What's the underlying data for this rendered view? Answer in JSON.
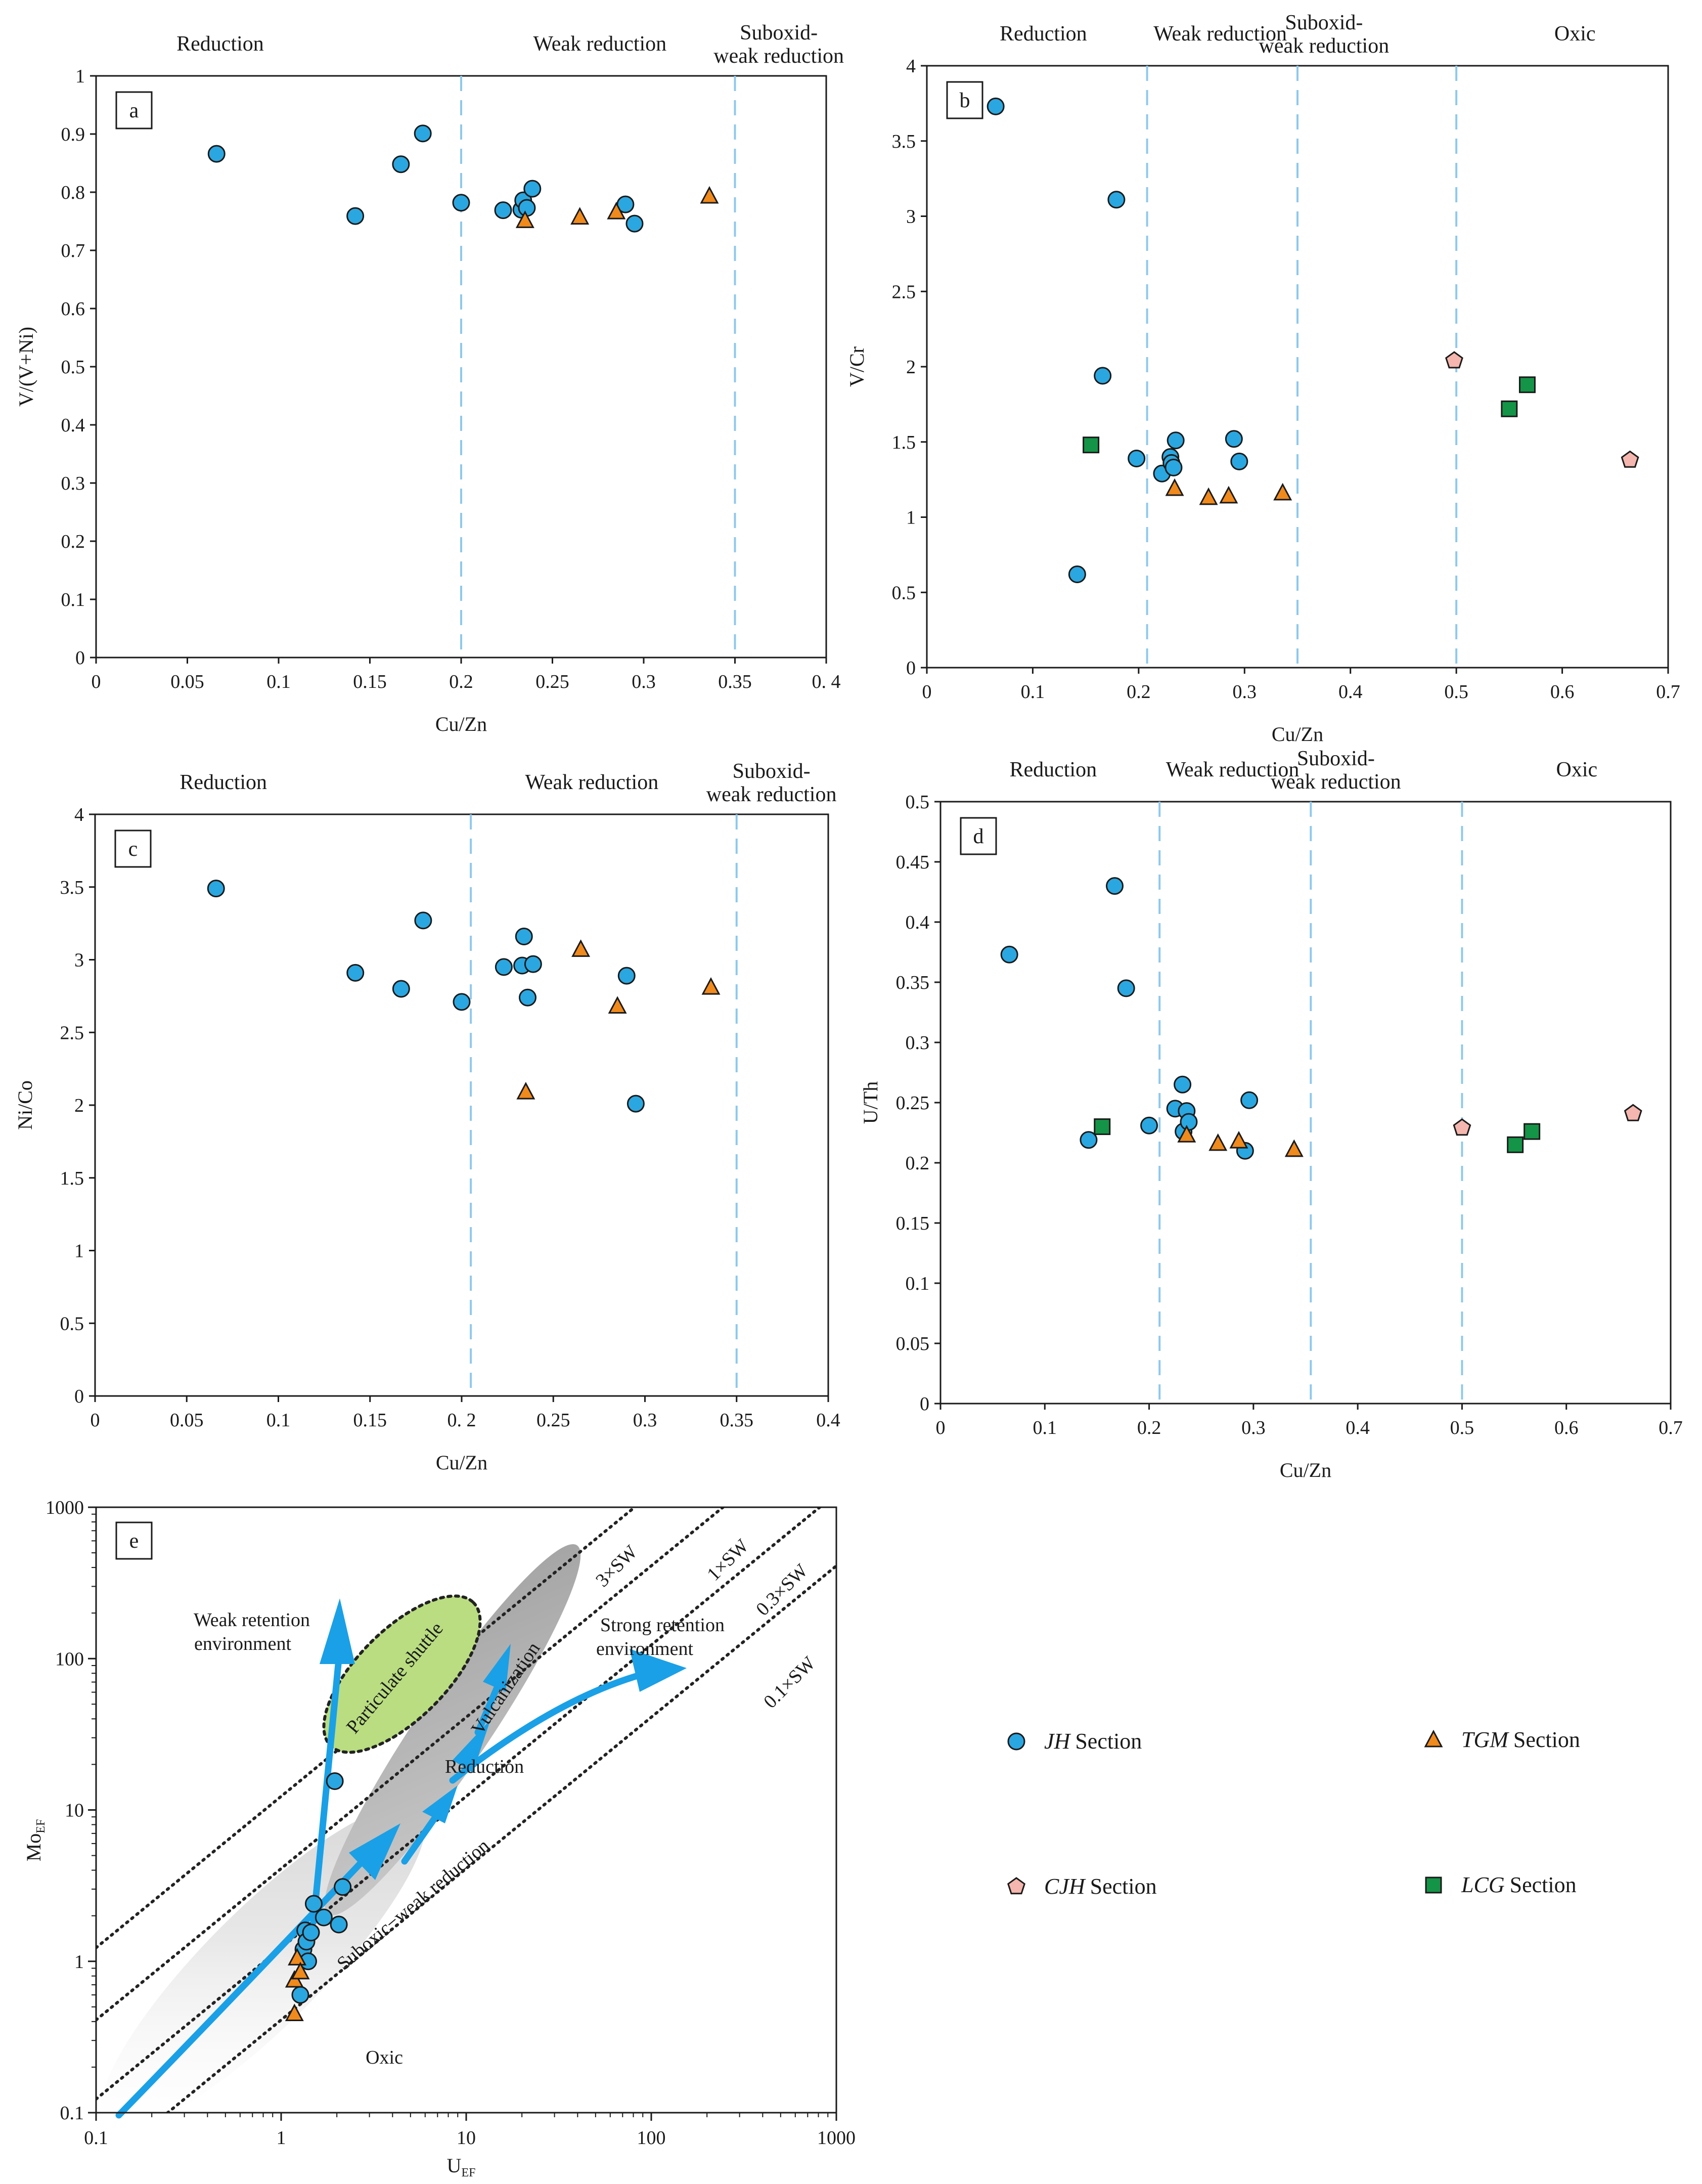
{
  "figure_title": "",
  "colors": {
    "jh": "#2aa7e0",
    "tgm": "#f08a1c",
    "cjh": "#f4b6ae",
    "lcg": "#149447",
    "divider": "#8ec9ec",
    "arrow": "#1aa0e6",
    "shuttle_fill": "#b9dd80"
  },
  "legend": {
    "items": [
      {
        "key": "jh",
        "name": "JH",
        "suffix": "Section"
      },
      {
        "key": "tgm",
        "name": "TGM",
        "suffix": "Section"
      },
      {
        "key": "cjh",
        "name": "CJH",
        "suffix": "Section"
      },
      {
        "key": "lcg",
        "name": "LCG",
        "suffix": "Section"
      }
    ]
  },
  "chart_data": [
    {
      "id": "a",
      "type": "scatter",
      "panel_label": "a",
      "xlabel": "Cu/Zn",
      "ylabel": "V/(V+Ni)",
      "xlim": [
        0,
        0.4
      ],
      "ylim": [
        0,
        1
      ],
      "xticks": [
        0,
        0.05,
        0.1,
        0.15,
        0.2,
        0.25,
        0.3,
        0.35,
        0.4
      ],
      "xtick_labels": [
        "0",
        "0.05",
        "0.1",
        "0.15",
        "0.2",
        "0.25",
        "0.3",
        "0.35",
        "0.  4"
      ],
      "yticks": [
        0,
        0.1,
        0.2,
        0.3,
        0.4,
        0.5,
        0.6,
        0.7,
        0.8,
        0.9,
        1
      ],
      "ytick_labels": [
        "0",
        "0.1",
        "0.2",
        "0.3",
        "0.4",
        "0.5",
        "0.6",
        "0.7",
        "0.8",
        "0.9",
        "1"
      ],
      "dividers": [
        0.2,
        0.35
      ],
      "zones": [
        {
          "label": "Reduction",
          "x": 0.068
        },
        {
          "label": "Weak reduction",
          "x": 0.276
        },
        {
          "label": "Suboxid-",
          "x": 0.374
        },
        {
          "label": "weak reduction",
          "x": 0.374
        }
      ],
      "series": [
        {
          "name": "JH Section",
          "marker": "circle",
          "points": [
            [
              0.066,
              0.866
            ],
            [
              0.142,
              0.759
            ],
            [
              0.167,
              0.848
            ],
            [
              0.179,
              0.901
            ],
            [
              0.2,
              0.782
            ],
            [
              0.223,
              0.769
            ],
            [
              0.233,
              0.77
            ],
            [
              0.234,
              0.786
            ],
            [
              0.236,
              0.773
            ],
            [
              0.239,
              0.806
            ],
            [
              0.29,
              0.779
            ],
            [
              0.295,
              0.746
            ]
          ]
        },
        {
          "name": "TGM Section",
          "marker": "triangle",
          "points": [
            [
              0.235,
              0.751
            ],
            [
              0.265,
              0.757
            ],
            [
              0.285,
              0.766
            ],
            [
              0.336,
              0.793
            ]
          ]
        }
      ]
    },
    {
      "id": "b",
      "type": "scatter",
      "panel_label": "b",
      "xlabel": "Cu/Zn",
      "ylabel": "V/Cr",
      "xlim": [
        0,
        0.7
      ],
      "ylim": [
        0,
        4
      ],
      "xticks": [
        0,
        0.1,
        0.2,
        0.3,
        0.4,
        0.5,
        0.6,
        0.7
      ],
      "xtick_labels": [
        "0",
        "0.1",
        "0.2",
        "0.3",
        "0.4",
        "0.5",
        "0.6",
        "0.7"
      ],
      "yticks": [
        0,
        0.5,
        1,
        1.5,
        2,
        2.5,
        3,
        3.5,
        4
      ],
      "ytick_labels": [
        "0",
        "0.5",
        "1",
        "1.5",
        "2",
        "2.5",
        "3",
        "3.5",
        "4"
      ],
      "dividers": [
        0.208,
        0.35,
        0.5
      ],
      "zones": [
        {
          "label": "Reduction",
          "x": 0.11
        },
        {
          "label": "Weak reduction",
          "x": 0.277
        },
        {
          "label": "Suboxid-",
          "x": 0.375
        },
        {
          "label": "weak reduction",
          "x": 0.375
        },
        {
          "label": "Oxic",
          "x": 0.612
        }
      ],
      "series": [
        {
          "name": "JH Section",
          "marker": "circle",
          "points": [
            [
              0.065,
              3.73
            ],
            [
              0.142,
              0.62
            ],
            [
              0.166,
              1.94
            ],
            [
              0.179,
              3.11
            ],
            [
              0.198,
              1.39
            ],
            [
              0.222,
              1.29
            ],
            [
              0.23,
              1.4
            ],
            [
              0.231,
              1.36
            ],
            [
              0.233,
              1.33
            ],
            [
              0.235,
              1.51
            ],
            [
              0.29,
              1.52
            ],
            [
              0.295,
              1.37
            ]
          ]
        },
        {
          "name": "TGM Section",
          "marker": "triangle",
          "points": [
            [
              0.234,
              1.19
            ],
            [
              0.266,
              1.13
            ],
            [
              0.285,
              1.14
            ],
            [
              0.336,
              1.16
            ]
          ]
        },
        {
          "name": "CJH Section",
          "marker": "pentagon",
          "points": [
            [
              0.498,
              2.04
            ],
            [
              0.664,
              1.38
            ]
          ]
        },
        {
          "name": "LCG Section",
          "marker": "square",
          "points": [
            [
              0.155,
              1.48
            ],
            [
              0.55,
              1.72
            ],
            [
              0.567,
              1.88
            ]
          ]
        }
      ]
    },
    {
      "id": "c",
      "type": "scatter",
      "panel_label": "c",
      "xlabel": "Cu/Zn",
      "ylabel": "Ni/Co",
      "xlim": [
        0,
        0.4
      ],
      "ylim": [
        0,
        4
      ],
      "xticks": [
        0,
        0.05,
        0.1,
        0.15,
        0.2,
        0.25,
        0.3,
        0.35,
        0.4
      ],
      "xtick_labels": [
        "0",
        "0.05",
        "0.1",
        "0.15",
        "0. 2",
        "0.25",
        "0.3",
        "0.35",
        "0.4"
      ],
      "yticks": [
        0,
        0.5,
        1,
        1.5,
        2,
        2.5,
        3,
        3.5,
        4
      ],
      "ytick_labels": [
        "0",
        "0.5",
        "1",
        "1.5",
        "2",
        "2.5",
        "3",
        "3.5",
        "4"
      ],
      "dividers": [
        0.205,
        0.35
      ],
      "zones": [
        {
          "label": "Reduction",
          "x": 0.07
        },
        {
          "label": "Weak reduction",
          "x": 0.271
        },
        {
          "label": "Suboxid-",
          "x": 0.369
        },
        {
          "label": "weak reduction",
          "x": 0.369
        }
      ],
      "series": [
        {
          "name": "JH Section",
          "marker": "circle",
          "points": [
            [
              0.066,
              3.49
            ],
            [
              0.142,
              2.91
            ],
            [
              0.167,
              2.8
            ],
            [
              0.179,
              3.27
            ],
            [
              0.2,
              2.71
            ],
            [
              0.223,
              2.95
            ],
            [
              0.233,
              2.96
            ],
            [
              0.234,
              3.16
            ],
            [
              0.236,
              2.74
            ],
            [
              0.239,
              2.97
            ],
            [
              0.29,
              2.89
            ],
            [
              0.295,
              2.01
            ]
          ]
        },
        {
          "name": "TGM Section",
          "marker": "triangle",
          "points": [
            [
              0.235,
              2.09
            ],
            [
              0.265,
              3.07
            ],
            [
              0.285,
              2.68
            ],
            [
              0.336,
              2.81
            ]
          ]
        }
      ]
    },
    {
      "id": "d",
      "type": "scatter",
      "panel_label": "d",
      "xlabel": "Cu/Zn",
      "ylabel": "U/Th",
      "xlim": [
        0,
        0.7
      ],
      "ylim": [
        0,
        0.5
      ],
      "xticks": [
        0,
        0.1,
        0.2,
        0.3,
        0.4,
        0.5,
        0.6,
        0.7
      ],
      "xtick_labels": [
        "0",
        "0.1",
        "0.2",
        "0.3",
        "0.4",
        "0.5",
        "0.6",
        "0.7"
      ],
      "yticks": [
        0,
        0.05,
        0.1,
        0.15,
        0.2,
        0.25,
        0.3,
        0.35,
        0.4,
        0.45,
        0.5
      ],
      "ytick_labels": [
        "0",
        "0.05",
        "0.1",
        "0.15",
        "0.2",
        "0.25",
        "0.3",
        "0.35",
        "0.4",
        "0.45",
        "0.5"
      ],
      "dividers": [
        0.21,
        0.355,
        0.5
      ],
      "zones": [
        {
          "label": "Reduction",
          "x": 0.108
        },
        {
          "label": "Weak reduction",
          "x": 0.28
        },
        {
          "label": "Suboxid-",
          "x": 0.379
        },
        {
          "label": "weak reduction",
          "x": 0.379
        },
        {
          "label": "Oxic",
          "x": 0.61
        }
      ],
      "series": [
        {
          "name": "JH Section",
          "marker": "circle",
          "points": [
            [
              0.066,
              0.373
            ],
            [
              0.142,
              0.219
            ],
            [
              0.167,
              0.43
            ],
            [
              0.178,
              0.345
            ],
            [
              0.2,
              0.231
            ],
            [
              0.225,
              0.245
            ],
            [
              0.232,
              0.265
            ],
            [
              0.233,
              0.226
            ],
            [
              0.236,
              0.243
            ],
            [
              0.238,
              0.234
            ],
            [
              0.292,
              0.21
            ],
            [
              0.296,
              0.252
            ]
          ]
        },
        {
          "name": "TGM Section",
          "marker": "triangle",
          "points": [
            [
              0.236,
              0.223
            ],
            [
              0.266,
              0.216
            ],
            [
              0.286,
              0.218
            ],
            [
              0.339,
              0.211
            ]
          ]
        },
        {
          "name": "CJH Section",
          "marker": "pentagon",
          "points": [
            [
              0.5,
              0.229
            ],
            [
              0.664,
              0.241
            ]
          ]
        },
        {
          "name": "LCG Section",
          "marker": "square",
          "points": [
            [
              0.155,
              0.23
            ],
            [
              0.551,
              0.215
            ],
            [
              0.567,
              0.226
            ]
          ]
        }
      ]
    },
    {
      "id": "e",
      "type": "scatter",
      "panel_label": "e",
      "xlabel": "U",
      "xlabel_sub": "EF",
      "ylabel": "Mo",
      "ylabel_sub": "EF",
      "xscale": "log",
      "yscale": "log",
      "xlim": [
        0.1,
        1000
      ],
      "ylim": [
        0.1,
        1000
      ],
      "xticks": [
        0.1,
        1,
        10,
        100,
        1000
      ],
      "xtick_labels": [
        "0.1",
        "1",
        "10",
        "100",
        "1000"
      ],
      "yticks": [
        0.1,
        1,
        10,
        100,
        1000
      ],
      "ytick_labels": [
        "0.1",
        "1",
        "10",
        "100",
        "1000"
      ],
      "sw_lines": [
        {
          "label": "3×SW",
          "factor": 12.3
        },
        {
          "label": "1×SW",
          "factor": 4.1
        },
        {
          "label": "0.3×SW",
          "factor": 1.23
        },
        {
          "label": "0.1×SW",
          "factor": 0.41
        }
      ],
      "annotations": {
        "weak_retention_1": "Weak retention",
        "weak_retention_2": "environment",
        "strong_retention_1": "Strong retention",
        "strong_retention_2": "environment",
        "particulate_shuttle": "Particulate shuttle",
        "vulcanization": "Vulcanization",
        "reduction": "Reduction",
        "suboxic": "Suboxic−weak reduction",
        "oxic": "Oxic"
      },
      "series": [
        {
          "name": "JH Section",
          "marker": "circle",
          "points": [
            [
              1.27,
              0.6
            ],
            [
              1.32,
              1.2
            ],
            [
              1.35,
              1.6
            ],
            [
              1.37,
              1.35
            ],
            [
              1.4,
              1.0
            ],
            [
              1.5,
              2.4
            ],
            [
              1.7,
              1.95
            ],
            [
              1.95,
              15.5
            ],
            [
              2.05,
              1.75
            ],
            [
              2.15,
              3.1
            ],
            [
              1.45,
              1.55
            ]
          ]
        },
        {
          "name": "TGM Section",
          "marker": "triangle",
          "points": [
            [
              1.18,
              0.45
            ],
            [
              1.18,
              0.75
            ],
            [
              1.22,
              1.05
            ],
            [
              1.27,
              0.85
            ]
          ]
        }
      ]
    }
  ]
}
